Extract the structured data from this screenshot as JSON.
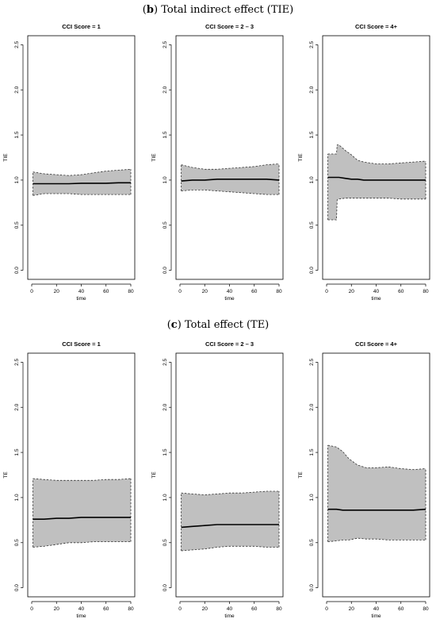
{
  "sections": [
    {
      "label": "b",
      "title": "Total indirect effect (TIE)"
    },
    {
      "label": "c",
      "title": "Total effect (TE)"
    }
  ],
  "chart_data": [
    {
      "type": "area",
      "section": "b",
      "title": "CCI Score = 1",
      "xlabel": "time",
      "ylabel": "TIE",
      "xlim": [
        0,
        80
      ],
      "ylim": [
        0,
        2.5
      ],
      "xticks": [
        "0",
        "20",
        "40",
        "60",
        "80"
      ],
      "yticks": [
        "0.0",
        "0.5",
        "1.0",
        "1.5",
        "2.0",
        "2.5"
      ],
      "grid": false,
      "x": [
        1,
        10,
        20,
        30,
        40,
        50,
        60,
        70,
        80
      ],
      "estimate": [
        0.96,
        0.96,
        0.96,
        0.96,
        0.965,
        0.965,
        0.965,
        0.97,
        0.97
      ],
      "lower": [
        0.83,
        0.85,
        0.85,
        0.85,
        0.84,
        0.84,
        0.84,
        0.84,
        0.84
      ],
      "upper": [
        1.09,
        1.07,
        1.06,
        1.05,
        1.06,
        1.08,
        1.1,
        1.11,
        1.12
      ]
    },
    {
      "type": "area",
      "section": "b",
      "title": "CCI Score = 2 – 3",
      "xlabel": "time",
      "ylabel": "TIE",
      "xlim": [
        0,
        80
      ],
      "ylim": [
        0,
        2.5
      ],
      "xticks": [
        "0",
        "20",
        "40",
        "60",
        "80"
      ],
      "yticks": [
        "0.0",
        "0.5",
        "1.0",
        "1.5",
        "2.0",
        "2.5"
      ],
      "grid": false,
      "x": [
        1,
        10,
        20,
        30,
        40,
        50,
        60,
        70,
        80
      ],
      "estimate": [
        0.99,
        1.0,
        1.0,
        1.01,
        1.01,
        1.01,
        1.01,
        1.01,
        1.0
      ],
      "lower": [
        0.88,
        0.89,
        0.89,
        0.88,
        0.87,
        0.86,
        0.85,
        0.84,
        0.84
      ],
      "upper": [
        1.17,
        1.14,
        1.12,
        1.12,
        1.13,
        1.14,
        1.15,
        1.17,
        1.18
      ]
    },
    {
      "type": "area",
      "section": "b",
      "title": "CCI Score = 4+",
      "xlabel": "time",
      "ylabel": "TIE",
      "xlim": [
        0,
        80
      ],
      "ylim": [
        0,
        2.5
      ],
      "xticks": [
        "0",
        "20",
        "40",
        "60",
        "80"
      ],
      "yticks": [
        "0.0",
        "0.5",
        "1.0",
        "1.5",
        "2.0",
        "2.5"
      ],
      "grid": false,
      "x": [
        1,
        8,
        8.5,
        10,
        15,
        20,
        25,
        30,
        40,
        50,
        60,
        70,
        80
      ],
      "estimate": [
        1.03,
        1.03,
        1.03,
        1.03,
        1.02,
        1.01,
        1.01,
        1.0,
        1.0,
        1.0,
        1.0,
        1.0,
        1.0
      ],
      "lower": [
        0.56,
        0.56,
        0.78,
        0.79,
        0.8,
        0.8,
        0.8,
        0.8,
        0.8,
        0.8,
        0.79,
        0.79,
        0.79
      ],
      "upper": [
        1.29,
        1.29,
        1.39,
        1.39,
        1.33,
        1.28,
        1.22,
        1.2,
        1.18,
        1.18,
        1.19,
        1.2,
        1.21
      ]
    },
    {
      "type": "area",
      "section": "c",
      "title": "CCI Score = 1",
      "xlabel": "time",
      "ylabel": "TE",
      "xlim": [
        0,
        80
      ],
      "ylim": [
        0,
        2.5
      ],
      "xticks": [
        "0",
        "20",
        "40",
        "60",
        "80"
      ],
      "yticks": [
        "0.0",
        "0.5",
        "1.0",
        "1.5",
        "2.0",
        "2.5"
      ],
      "grid": false,
      "x": [
        1,
        10,
        20,
        30,
        40,
        50,
        60,
        70,
        80
      ],
      "estimate": [
        0.76,
        0.76,
        0.77,
        0.77,
        0.78,
        0.78,
        0.78,
        0.78,
        0.78
      ],
      "lower": [
        0.45,
        0.46,
        0.48,
        0.5,
        0.5,
        0.51,
        0.51,
        0.51,
        0.51
      ],
      "upper": [
        1.21,
        1.2,
        1.19,
        1.19,
        1.19,
        1.19,
        1.2,
        1.2,
        1.21
      ]
    },
    {
      "type": "area",
      "section": "c",
      "title": "CCI Score = 2 – 3",
      "xlabel": "time",
      "ylabel": "TE",
      "xlim": [
        0,
        80
      ],
      "ylim": [
        0,
        2.5
      ],
      "xticks": [
        "0",
        "20",
        "40",
        "60",
        "80"
      ],
      "yticks": [
        "0.0",
        "0.5",
        "1.0",
        "1.5",
        "2.0",
        "2.5"
      ],
      "grid": false,
      "x": [
        1,
        10,
        20,
        30,
        40,
        50,
        60,
        70,
        80
      ],
      "estimate": [
        0.67,
        0.68,
        0.69,
        0.7,
        0.7,
        0.7,
        0.7,
        0.7,
        0.7
      ],
      "lower": [
        0.41,
        0.42,
        0.43,
        0.45,
        0.46,
        0.46,
        0.46,
        0.45,
        0.45
      ],
      "upper": [
        1.05,
        1.04,
        1.03,
        1.04,
        1.05,
        1.05,
        1.06,
        1.07,
        1.07
      ]
    },
    {
      "type": "area",
      "section": "c",
      "title": "CCI Score = 4+",
      "xlabel": "time",
      "ylabel": "TE",
      "xlim": [
        0,
        80
      ],
      "ylim": [
        0,
        2.5
      ],
      "xticks": [
        "0",
        "20",
        "40",
        "60",
        "80"
      ],
      "yticks": [
        "0.0",
        "0.5",
        "1.0",
        "1.5",
        "2.0",
        "2.5"
      ],
      "grid": false,
      "x": [
        1,
        8,
        13,
        18,
        25,
        32,
        40,
        50,
        60,
        70,
        80
      ],
      "estimate": [
        0.87,
        0.87,
        0.86,
        0.86,
        0.86,
        0.86,
        0.86,
        0.86,
        0.86,
        0.86,
        0.87
      ],
      "lower": [
        0.51,
        0.52,
        0.53,
        0.53,
        0.55,
        0.54,
        0.54,
        0.53,
        0.53,
        0.53,
        0.53
      ],
      "upper": [
        1.58,
        1.56,
        1.51,
        1.43,
        1.36,
        1.33,
        1.33,
        1.34,
        1.32,
        1.31,
        1.32
      ]
    }
  ]
}
